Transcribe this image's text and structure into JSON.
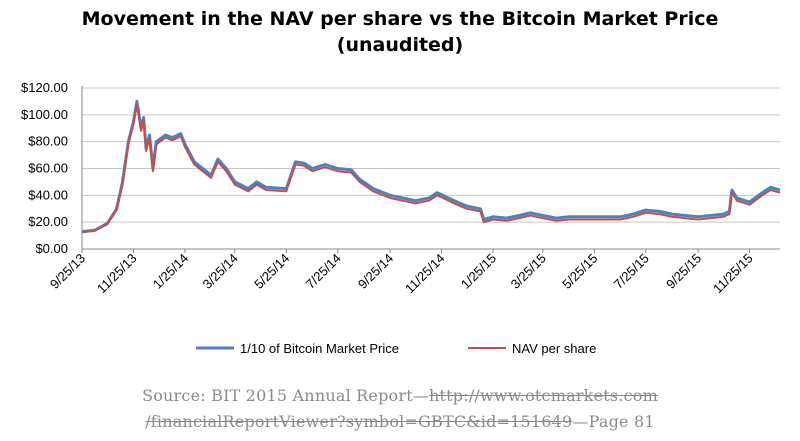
{
  "chart_data": {
    "type": "line",
    "title_line1": "Movement in the NAV per share vs the Bitcoin Market Price",
    "title_line2": "(unaudited)",
    "xlabel": "",
    "ylabel": "",
    "y_ticks": [
      "$0.00",
      "$20.00",
      "$40.00",
      "$60.00",
      "$80.00",
      "$100.00",
      "$120.00"
    ],
    "x_ticks": [
      "9/25/13",
      "11/25/13",
      "1/25/14",
      "3/25/14",
      "5/25/14",
      "7/25/14",
      "9/25/14",
      "11/25/14",
      "1/25/15",
      "3/25/15",
      "5/25/15",
      "7/25/15",
      "9/25/15",
      "11/25/15"
    ],
    "ylim": [
      0,
      120
    ],
    "grid": true,
    "legend_position": "bottom",
    "x": [
      "2013-09-25",
      "2013-10-10",
      "2013-10-25",
      "2013-11-05",
      "2013-11-12",
      "2013-11-19",
      "2013-11-25",
      "2013-11-29",
      "2013-12-04",
      "2013-12-07",
      "2013-12-10",
      "2013-12-14",
      "2013-12-18",
      "2013-12-22",
      "2014-01-02",
      "2014-01-10",
      "2014-01-20",
      "2014-01-25",
      "2014-02-05",
      "2014-02-15",
      "2014-02-25",
      "2014-03-05",
      "2014-03-15",
      "2014-03-25",
      "2014-04-10",
      "2014-04-20",
      "2014-05-01",
      "2014-05-25",
      "2014-06-05",
      "2014-06-15",
      "2014-06-25",
      "2014-07-10",
      "2014-07-25",
      "2014-08-10",
      "2014-08-20",
      "2014-09-05",
      "2014-09-25",
      "2014-10-10",
      "2014-10-25",
      "2014-11-10",
      "2014-11-20",
      "2014-12-10",
      "2014-12-25",
      "2015-01-10",
      "2015-01-14",
      "2015-01-25",
      "2015-02-10",
      "2015-02-25",
      "2015-03-10",
      "2015-03-25",
      "2015-04-10",
      "2015-04-25",
      "2015-05-25",
      "2015-06-25",
      "2015-07-10",
      "2015-07-25",
      "2015-08-10",
      "2015-08-25",
      "2015-09-25",
      "2015-10-25",
      "2015-11-01",
      "2015-11-04",
      "2015-11-10",
      "2015-11-25",
      "2015-12-10",
      "2015-12-20",
      "2015-12-31"
    ],
    "series": [
      {
        "name": "1/10 of Bitcoin Market Price",
        "color": "#4f81bd",
        "values": [
          13,
          14,
          19,
          30,
          50,
          80,
          95,
          110,
          90,
          98,
          75,
          85,
          60,
          80,
          85,
          83,
          86,
          78,
          65,
          60,
          55,
          67,
          60,
          50,
          45,
          50,
          46,
          45,
          65,
          64,
          60,
          63,
          60,
          59,
          52,
          45,
          40,
          38,
          36,
          38,
          42,
          36,
          32,
          30,
          22,
          24,
          23,
          25,
          27,
          25,
          23,
          24,
          24,
          24,
          26,
          29,
          28,
          26,
          24,
          26,
          28,
          44,
          38,
          35,
          42,
          46,
          44
        ]
      },
      {
        "name": "NAV per share",
        "color": "#c0504d",
        "values": [
          12.5,
          13.5,
          18.5,
          29,
          48,
          78,
          93,
          108,
          88,
          96,
          73,
          83,
          58,
          78,
          83,
          81,
          84,
          76,
          63,
          58,
          53,
          65,
          58,
          48,
          43,
          48,
          44,
          43,
          63,
          62,
          58,
          61,
          58,
          57,
          50,
          43,
          38,
          36,
          34,
          36,
          40,
          34,
          30,
          28,
          20,
          22,
          21,
          23,
          25,
          23,
          21,
          22,
          22,
          22,
          24,
          27,
          26,
          24,
          22,
          24,
          26,
          42,
          36,
          33,
          40,
          44,
          42
        ]
      }
    ]
  },
  "source": {
    "prefix": "Source: BIT 2015 Annual Report—",
    "link_part1": "http://www.otcmarkets.com",
    "link_part2": "/financialReportViewer?symbol=GBTC&id=151649",
    "suffix": "—Page 81"
  }
}
